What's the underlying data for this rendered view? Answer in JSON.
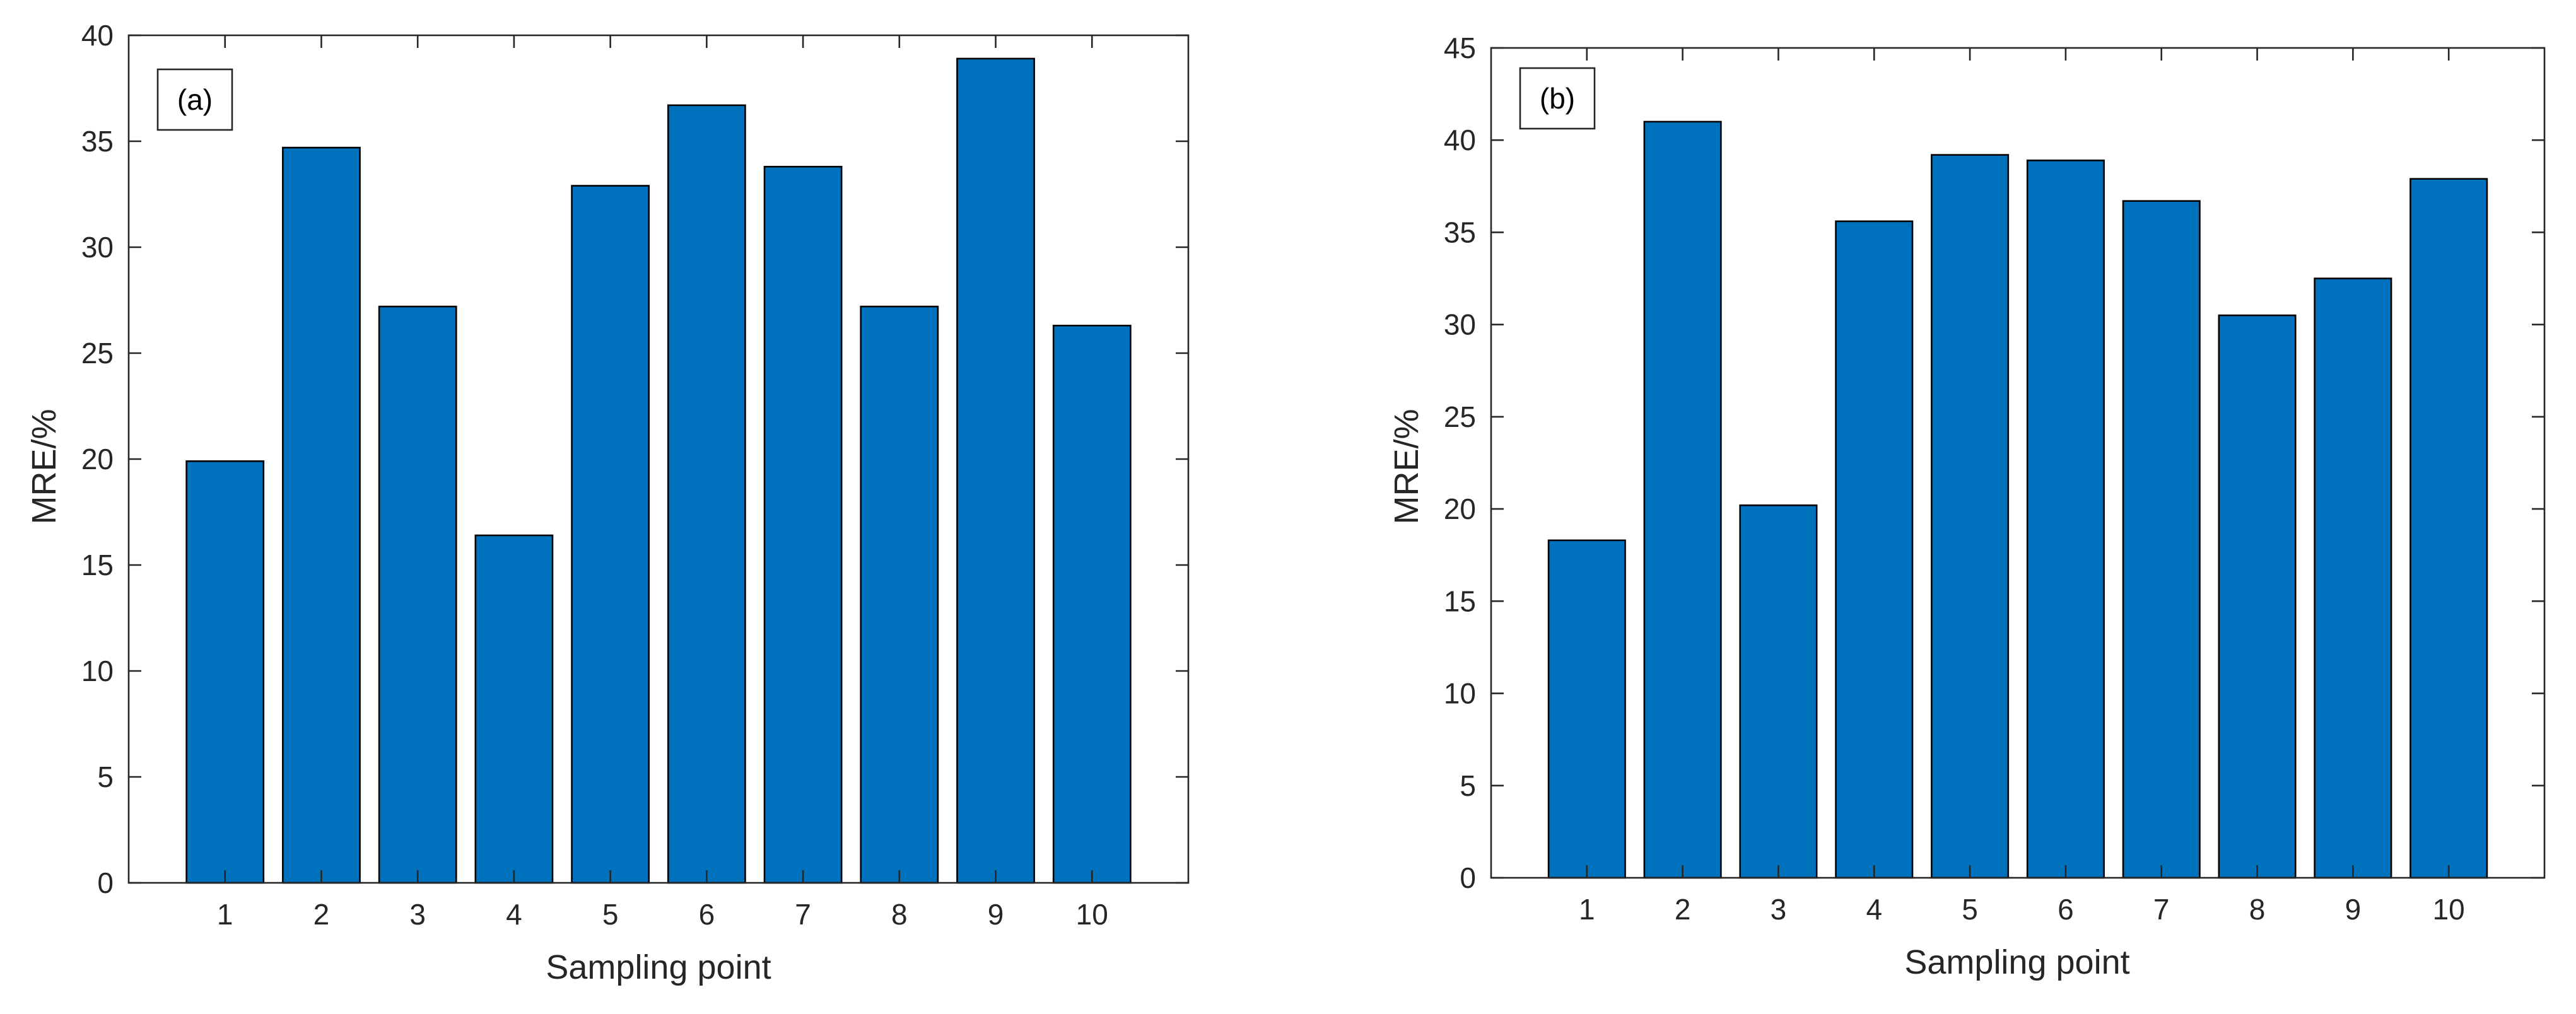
{
  "chart_data": [
    {
      "type": "bar",
      "panel_label": "(a)",
      "categories": [
        "1",
        "2",
        "3",
        "4",
        "5",
        "6",
        "7",
        "8",
        "9",
        "10"
      ],
      "values": [
        19.9,
        34.7,
        27.2,
        16.4,
        32.9,
        36.7,
        33.8,
        27.2,
        38.9,
        26.3
      ],
      "title": "",
      "xlabel": "Sampling point",
      "ylabel": "MRE/%",
      "ylim": [
        0,
        40
      ],
      "yticks": [
        "0",
        "5",
        "10",
        "15",
        "20",
        "25",
        "30",
        "35",
        "40"
      ],
      "bar_color": "#0072BD",
      "grid": false
    },
    {
      "type": "bar",
      "panel_label": "(b)",
      "categories": [
        "1",
        "2",
        "3",
        "4",
        "5",
        "6",
        "7",
        "8",
        "9",
        "10"
      ],
      "values": [
        18.3,
        41.0,
        20.2,
        35.6,
        39.2,
        38.9,
        36.7,
        30.5,
        32.5,
        37.9
      ],
      "title": "",
      "xlabel": "Sampling point",
      "ylabel": "MRE/%",
      "ylim": [
        0,
        45
      ],
      "yticks": [
        "0",
        "5",
        "10",
        "15",
        "20",
        "25",
        "30",
        "35",
        "40",
        "45"
      ],
      "bar_color": "#0072BD",
      "grid": false
    }
  ]
}
